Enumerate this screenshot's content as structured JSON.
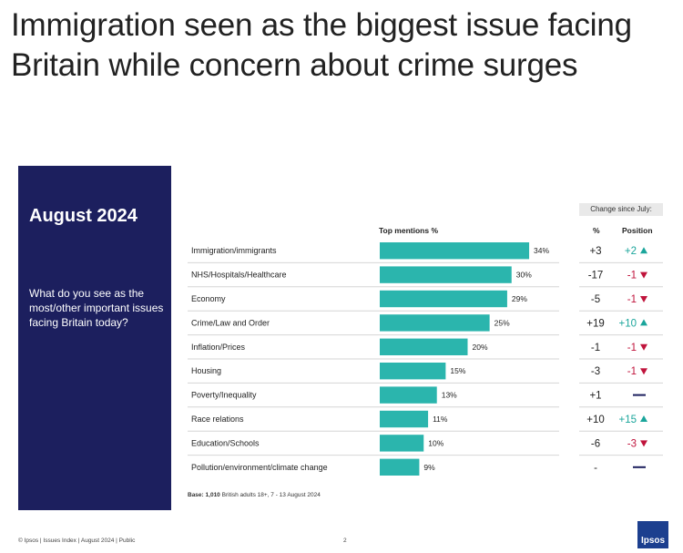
{
  "headline": "Immigration seen as the biggest issue facing Britain while concern about crime surges",
  "panel": {
    "title": "August 2024",
    "question": "What do you see as the most/other important issues facing Britain today?"
  },
  "table_headers": {
    "change_since": "Change since July:",
    "top_mentions": "Top mentions %",
    "pct": "%",
    "position": "Position"
  },
  "colors": {
    "bar": "#2bb5ad",
    "up": "#1aa59b",
    "down": "#c0143c",
    "neutral": "#1c1f5e",
    "panel": "#1c1f5e"
  },
  "chart_data": {
    "type": "bar",
    "orientation": "horizontal",
    "title": "Top mentions %",
    "xlim": [
      0,
      40
    ],
    "categories": [
      "Immigration/immigrants",
      "NHS/Hospitals/Healthcare",
      "Economy",
      "Crime/Law and Order",
      "Inflation/Prices",
      "Housing",
      "Poverty/Inequality",
      "Race relations",
      "Education/Schools",
      "Pollution/environment/climate change"
    ],
    "values": [
      34,
      30,
      29,
      25,
      20,
      15,
      13,
      11,
      10,
      9
    ],
    "value_labels": [
      "34%",
      "30%",
      "29%",
      "25%",
      "20%",
      "15%",
      "13%",
      "11%",
      "10%",
      "9%"
    ],
    "change_pct": [
      "+3",
      "-17",
      "-5",
      "+19",
      "-1",
      "-3",
      "+1",
      "+10",
      "-6",
      "-"
    ],
    "change_position": [
      {
        "text": "+2",
        "dir": "up"
      },
      {
        "text": "-1",
        "dir": "down"
      },
      {
        "text": "-1",
        "dir": "down"
      },
      {
        "text": "+10",
        "dir": "up"
      },
      {
        "text": "-1",
        "dir": "down"
      },
      {
        "text": "-1",
        "dir": "down"
      },
      {
        "text": "",
        "dir": "none"
      },
      {
        "text": "+15",
        "dir": "up"
      },
      {
        "text": "-3",
        "dir": "down"
      },
      {
        "text": "",
        "dir": "none"
      }
    ]
  },
  "base_note": {
    "label": "Base:",
    "count": "1,010",
    "text": "British adults 18+, 7 - 13 August 2024"
  },
  "footer": {
    "left": "© Ipsos | Issues Index | August 2024 | Public",
    "page_number": "2",
    "logo": "Ipsos"
  }
}
